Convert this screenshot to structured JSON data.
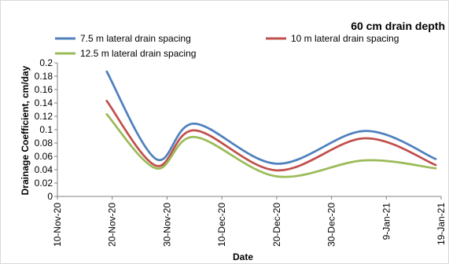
{
  "chart_data": {
    "type": "line",
    "title": "60 cm drain depth",
    "xlabel": "Date",
    "ylabel": "Drainage Coefficient, cm/day",
    "x_ticks": [
      "10-Nov-20",
      "20-Nov-20",
      "30-Nov-20",
      "10-Dec-20",
      "20-Dec-20",
      "30-Dec-20",
      "9-Jan-21",
      "19-Jan-21"
    ],
    "x_range": [
      "2020-11-10",
      "2021-01-19"
    ],
    "y_ticks": [
      "0",
      "0.02",
      "0.04",
      "0.06",
      "0.08",
      "0.1",
      "0.12",
      "0.14",
      "0.16",
      "0.18",
      "0.2"
    ],
    "ylim": [
      0,
      0.2
    ],
    "grid": false,
    "legend_position": "top",
    "series": [
      {
        "name": "7.5 m lateral drain spacing",
        "color": "#4F81BD",
        "x": [
          "2020-11-19",
          "2020-11-28",
          "2020-12-05",
          "2020-12-20",
          "2021-01-05",
          "2021-01-18"
        ],
        "y": [
          0.187,
          0.056,
          0.109,
          0.049,
          0.098,
          0.056
        ]
      },
      {
        "name": "10 m lateral drain spacing",
        "color": "#C0504D",
        "x": [
          "2020-11-19",
          "2020-11-28",
          "2020-12-05",
          "2020-12-20",
          "2021-01-05",
          "2021-01-18"
        ],
        "y": [
          0.143,
          0.046,
          0.099,
          0.039,
          0.087,
          0.047
        ]
      },
      {
        "name": "12.5 m lateral drain spacing",
        "color": "#9BBB59",
        "x": [
          "2020-11-19",
          "2020-11-28",
          "2020-12-05",
          "2020-12-20",
          "2021-01-05",
          "2021-01-18"
        ],
        "y": [
          0.123,
          0.042,
          0.089,
          0.03,
          0.054,
          0.042
        ]
      }
    ]
  }
}
